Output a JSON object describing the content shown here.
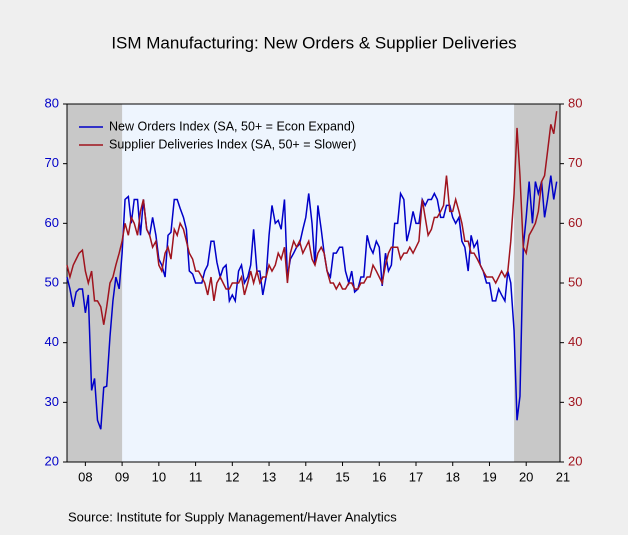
{
  "chart_data": {
    "type": "line",
    "title": "ISM Manufacturing: New Orders & Supplier Deliveries",
    "source": "Source:  Institute for Supply Management/Haver Analytics",
    "x": [
      2008.0,
      2008.08,
      2008.17,
      2008.25,
      2008.33,
      2008.42,
      2008.5,
      2008.58,
      2008.67,
      2008.75,
      2008.83,
      2008.92,
      2009.0,
      2009.08,
      2009.17,
      2009.25,
      2009.33,
      2009.42,
      2009.5,
      2009.58,
      2009.67,
      2009.75,
      2009.83,
      2009.92,
      2010.0,
      2010.08,
      2010.17,
      2010.25,
      2010.33,
      2010.42,
      2010.5,
      2010.58,
      2010.67,
      2010.75,
      2010.83,
      2010.92,
      2011.0,
      2011.08,
      2011.17,
      2011.25,
      2011.33,
      2011.42,
      2011.5,
      2011.58,
      2011.67,
      2011.75,
      2011.83,
      2011.92,
      2012.0,
      2012.08,
      2012.17,
      2012.25,
      2012.33,
      2012.42,
      2012.5,
      2012.58,
      2012.67,
      2012.75,
      2012.83,
      2012.92,
      2013.0,
      2013.08,
      2013.17,
      2013.25,
      2013.33,
      2013.42,
      2013.5,
      2013.58,
      2013.67,
      2013.75,
      2013.83,
      2013.92,
      2014.0,
      2014.08,
      2014.17,
      2014.25,
      2014.33,
      2014.42,
      2014.5,
      2014.58,
      2014.67,
      2014.75,
      2014.83,
      2014.92,
      2015.0,
      2015.08,
      2015.17,
      2015.25,
      2015.33,
      2015.42,
      2015.5,
      2015.58,
      2015.67,
      2015.75,
      2015.83,
      2015.92,
      2016.0,
      2016.08,
      2016.17,
      2016.25,
      2016.33,
      2016.42,
      2016.5,
      2016.58,
      2016.67,
      2016.75,
      2016.83,
      2016.92,
      2017.0,
      2017.08,
      2017.17,
      2017.25,
      2017.33,
      2017.42,
      2017.5,
      2017.58,
      2017.67,
      2017.75,
      2017.83,
      2017.92,
      2018.0,
      2018.08,
      2018.17,
      2018.25,
      2018.33,
      2018.42,
      2018.5,
      2018.58,
      2018.67,
      2018.75,
      2018.83,
      2018.92,
      2019.0,
      2019.08,
      2019.17,
      2019.25,
      2019.33,
      2019.42,
      2019.5,
      2019.58,
      2019.67,
      2019.75,
      2019.83,
      2019.92,
      2020.0,
      2020.08,
      2020.17,
      2020.25,
      2020.33,
      2020.42,
      2020.5,
      2020.58,
      2020.67,
      2020.75,
      2020.83,
      2020.92,
      2021.0,
      2021.08,
      2021.17,
      2021.25,
      2021.33
    ],
    "series": [
      {
        "name": "New Orders Index (SA, 50+ = Econ Expand)",
        "color": "#0000c8",
        "axis": "y",
        "values": [
          51,
          49,
          46,
          48.5,
          49,
          49,
          45,
          48,
          32,
          34,
          27,
          25.5,
          32.5,
          32.7,
          41,
          47,
          51,
          49,
          55,
          64,
          64.5,
          60,
          64,
          64,
          58,
          64,
          59,
          58,
          61,
          58,
          54,
          53,
          51,
          58,
          58.5,
          64,
          64,
          62.5,
          61,
          59,
          52,
          51.5,
          50,
          50,
          50,
          52,
          53,
          57,
          57,
          53.5,
          51,
          52.5,
          53,
          47,
          48,
          47,
          52,
          53,
          50,
          51,
          53,
          59,
          52,
          52,
          48,
          51,
          58,
          63,
          60,
          60.5,
          59,
          64,
          51,
          54,
          55,
          56,
          56.5,
          59,
          61,
          65,
          60,
          53,
          63,
          59,
          55,
          52,
          51,
          55,
          55,
          56,
          56,
          52,
          50,
          52,
          48.5,
          49,
          51,
          51,
          58,
          56,
          55,
          57,
          56,
          49.5,
          55,
          52,
          53,
          60,
          60,
          65,
          64,
          57,
          59,
          62,
          60,
          60,
          64,
          63,
          64,
          64,
          65,
          64,
          61,
          61,
          63,
          63,
          61,
          60,
          61,
          57,
          56,
          52,
          58,
          56,
          57,
          53,
          52,
          50,
          50,
          47,
          47,
          49,
          48,
          47,
          52,
          50,
          42,
          27,
          31,
          56,
          61,
          67,
          60,
          67,
          65,
          67,
          61,
          64,
          68,
          64,
          67
        ]
      },
      {
        "name": "Supplier Deliveries Index (SA, 50+ = Slower)",
        "color": "#a0141e",
        "axis": "y2",
        "values": [
          53,
          51,
          53,
          54,
          55,
          55.5,
          52,
          50,
          52,
          47,
          47,
          46,
          43,
          46,
          50,
          51,
          53,
          55,
          57,
          60,
          58,
          61,
          60,
          58,
          62,
          64,
          59,
          58,
          56,
          57,
          53,
          52,
          55,
          56,
          54,
          59,
          58,
          60,
          59,
          57,
          55,
          54,
          52,
          52,
          51,
          50,
          48,
          51,
          47,
          50,
          51,
          50,
          49,
          49,
          50,
          50,
          50,
          51,
          48,
          50,
          52,
          50,
          52,
          50,
          51,
          51,
          53,
          52,
          53,
          55,
          54,
          56,
          50,
          55,
          57,
          56,
          57,
          55,
          56,
          57,
          54,
          53,
          55,
          56,
          55,
          52,
          50,
          50,
          49,
          50,
          49,
          49,
          50,
          50,
          49,
          49,
          50,
          50,
          51,
          51,
          53,
          52,
          51,
          50,
          53,
          55,
          56,
          56,
          56,
          54,
          55,
          55,
          56,
          55,
          56,
          57,
          64,
          61,
          58,
          59,
          61,
          61,
          62,
          63,
          68,
          62,
          62,
          64,
          62,
          60,
          57,
          57,
          55,
          55,
          54,
          53,
          52,
          51,
          51,
          51,
          50,
          51,
          52,
          51,
          52,
          57,
          65,
          76,
          68,
          56,
          55,
          58,
          59,
          60,
          62,
          67,
          68,
          72,
          76.6,
          75,
          78.8
        ]
      }
    ],
    "shaded_periods": [
      [
        2008.0,
        2009.5
      ],
      [
        2020.17,
        2021.42
      ]
    ],
    "xlim": [
      2008.0,
      2021.42
    ],
    "xticks": [
      {
        "value": 2008.5,
        "label": "08"
      },
      {
        "value": 2009.5,
        "label": "09"
      },
      {
        "value": 2010.5,
        "label": "10"
      },
      {
        "value": 2011.5,
        "label": "11"
      },
      {
        "value": 2012.5,
        "label": "12"
      },
      {
        "value": 2013.5,
        "label": "13"
      },
      {
        "value": 2014.5,
        "label": "14"
      },
      {
        "value": 2015.5,
        "label": "15"
      },
      {
        "value": 2016.5,
        "label": "16"
      },
      {
        "value": 2017.5,
        "label": "17"
      },
      {
        "value": 2018.5,
        "label": "18"
      },
      {
        "value": 2019.5,
        "label": "19"
      },
      {
        "value": 2020.5,
        "label": "20"
      },
      {
        "value": 2021.5,
        "label": "21"
      }
    ],
    "ylim": [
      20,
      80
    ],
    "yticks": [
      20,
      30,
      40,
      50,
      60,
      70,
      80
    ],
    "y2lim": [
      20,
      80
    ],
    "y2ticks": [
      20,
      30,
      40,
      50,
      60,
      70,
      80
    ],
    "legend": "top-left"
  }
}
